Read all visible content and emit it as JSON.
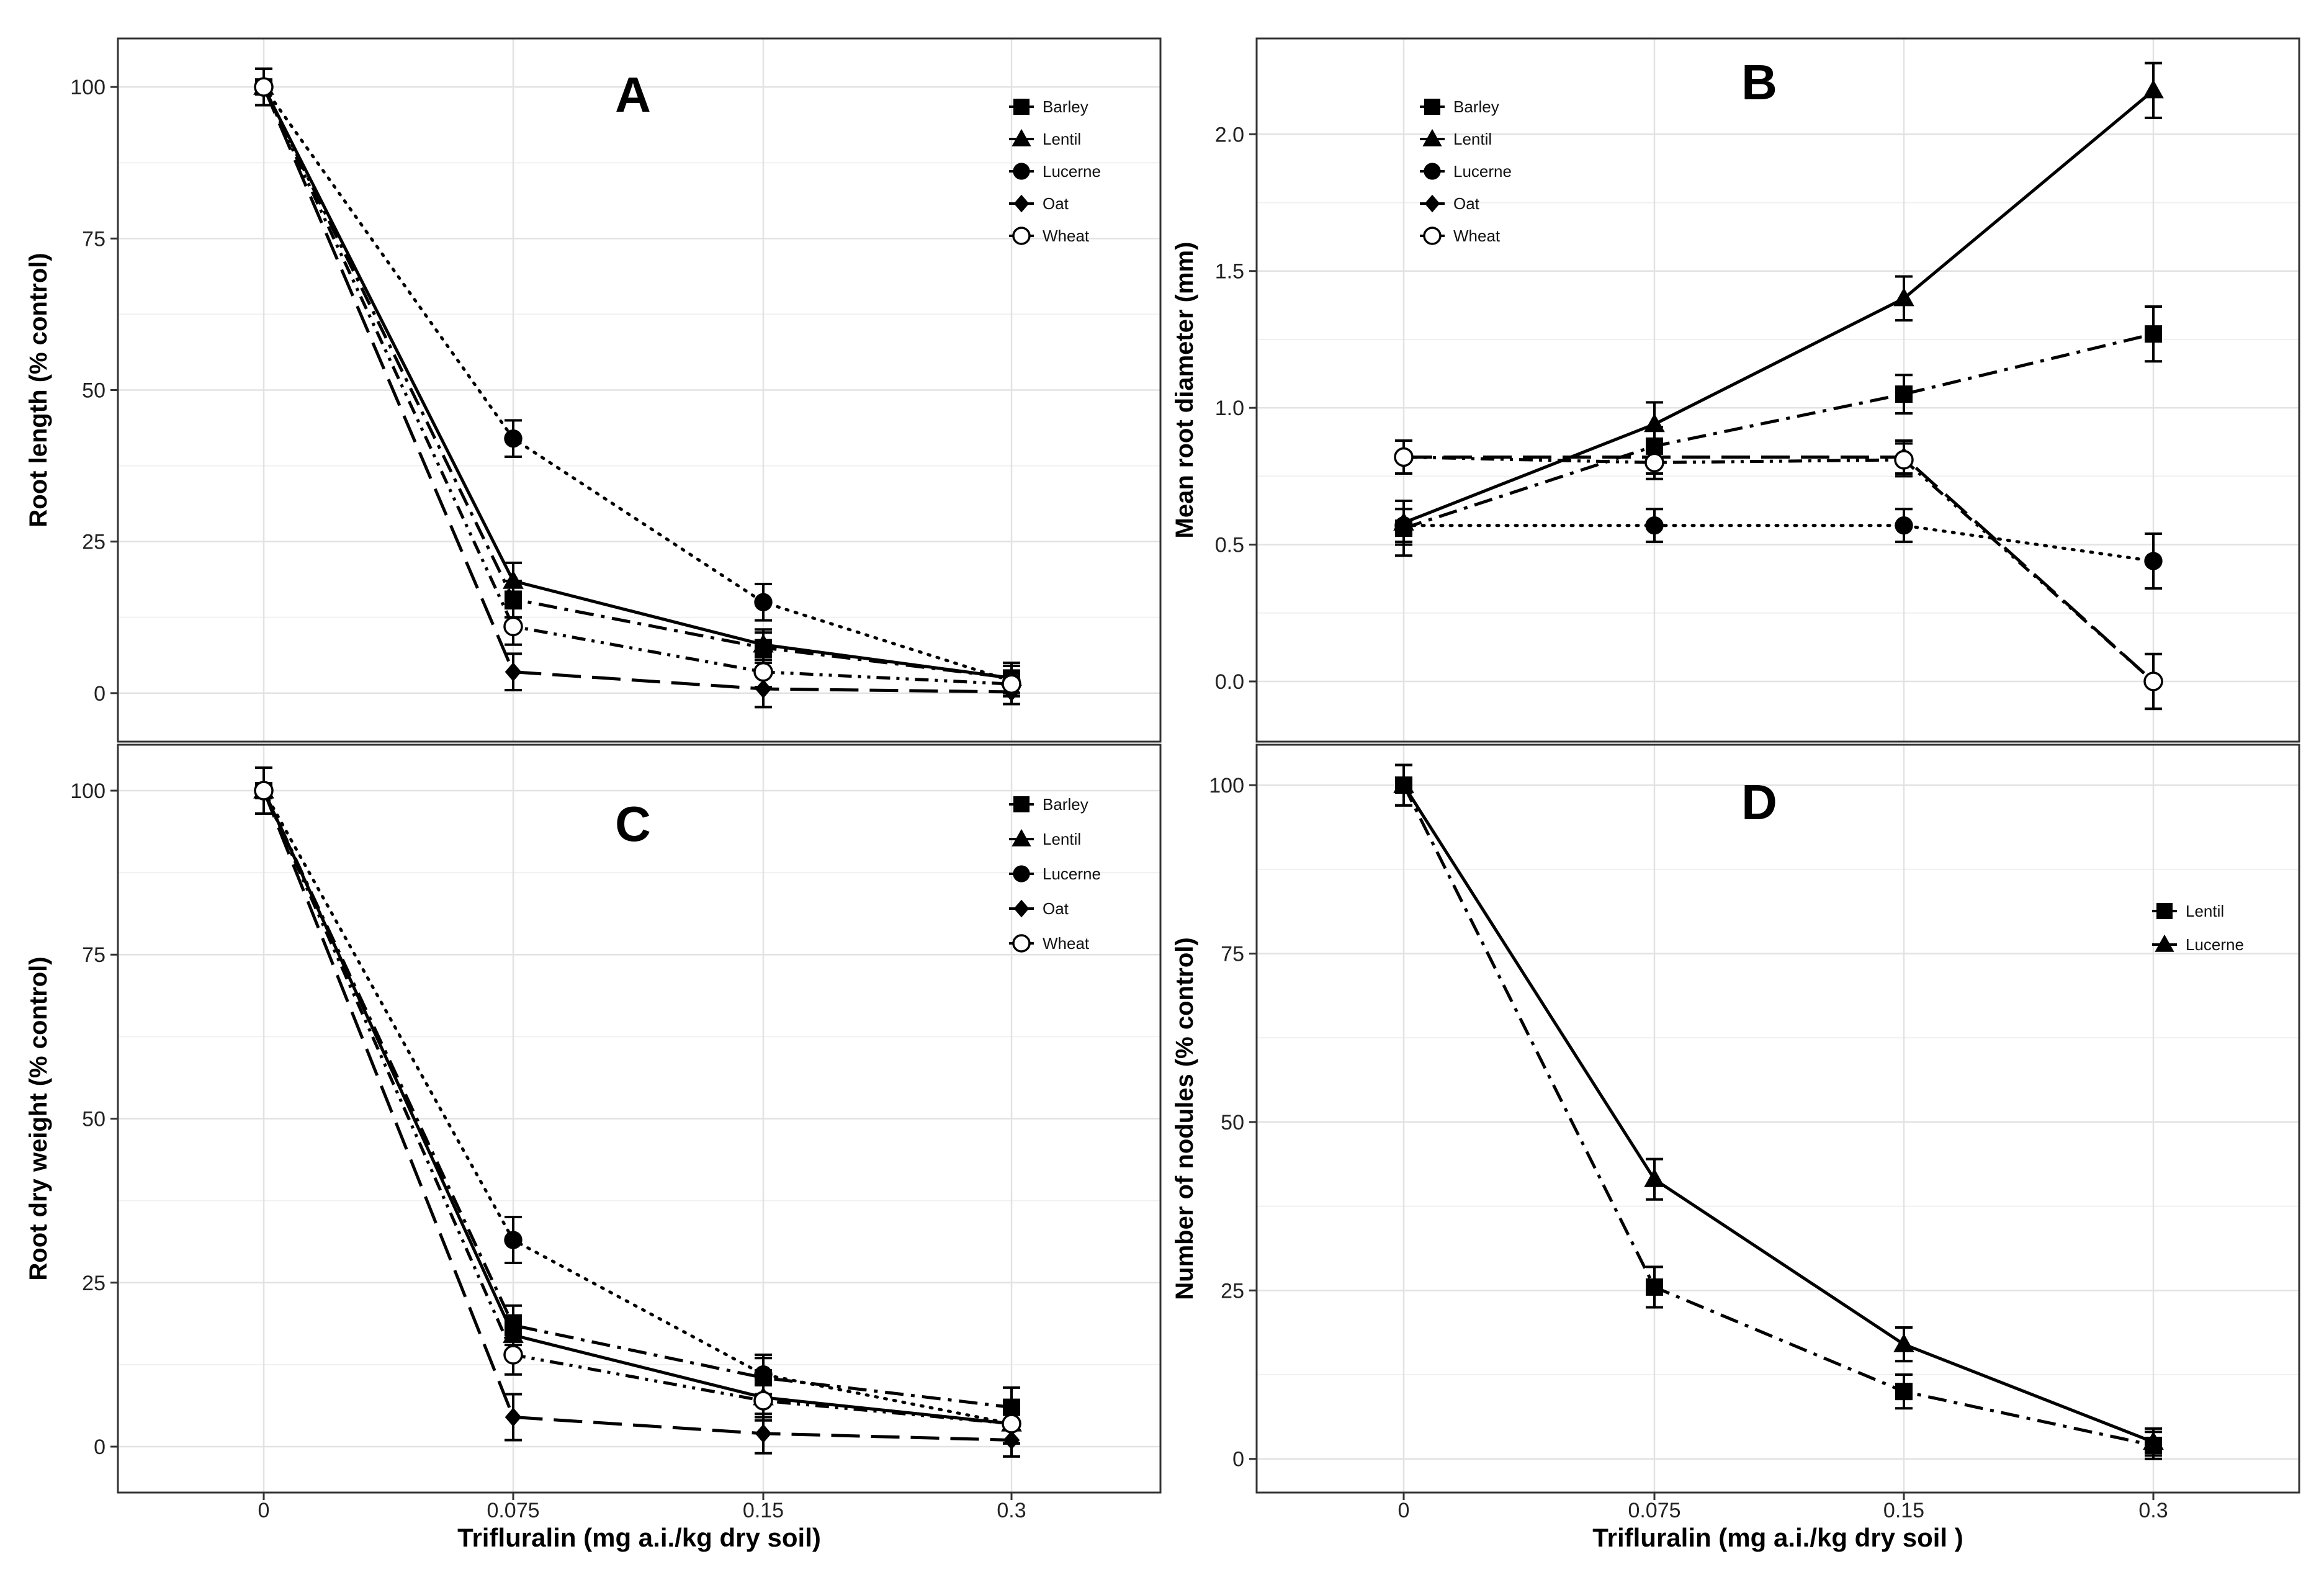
{
  "chart_data": [
    {
      "id": "A",
      "type": "line",
      "panel_label": "A",
      "title": "",
      "xlabel": "",
      "ylabel": "Root length (% control)",
      "categories": [
        "0",
        "0.075",
        "0.15",
        "0.3"
      ],
      "ylim": [
        -8,
        108
      ],
      "yticks": [
        0,
        25,
        50,
        75,
        100
      ],
      "grid": true,
      "legend_position": "top-right",
      "series": [
        {
          "name": "Barley",
          "values": [
            100,
            15.5,
            7.5,
            2.5
          ],
          "errors": [
            3,
            3,
            2.5,
            2.5
          ],
          "marker": "square",
          "dash": "dashdot"
        },
        {
          "name": "Lentil",
          "values": [
            100,
            18.5,
            8,
            2.5
          ],
          "errors": [
            3,
            3,
            2.5,
            2.5
          ],
          "marker": "triangle",
          "dash": "solid"
        },
        {
          "name": "Lucerne",
          "values": [
            100,
            42,
            15,
            2
          ],
          "errors": [
            3,
            3,
            3,
            2.5
          ],
          "marker": "circle",
          "dash": "dotted"
        },
        {
          "name": "Oat",
          "values": [
            100,
            3.5,
            0.7,
            0.2
          ],
          "errors": [
            3,
            3,
            3,
            2
          ],
          "marker": "diamond",
          "dash": "longdash"
        },
        {
          "name": "Wheat",
          "values": [
            100,
            11,
            3.5,
            1.5
          ],
          "errors": [
            3,
            3,
            2.5,
            2
          ],
          "marker": "open-circle",
          "dash": "dashdotdot"
        }
      ]
    },
    {
      "id": "B",
      "type": "line",
      "panel_label": "B",
      "title": "",
      "xlabel": "",
      "ylabel": "Mean root diameter (mm)",
      "categories": [
        "0",
        "0.075",
        "0.15",
        "0.3"
      ],
      "ylim": [
        -0.22,
        2.35
      ],
      "yticks": [
        0.0,
        0.5,
        1.0,
        1.5,
        2.0
      ],
      "ytick_labels": [
        "0.0",
        "0.5",
        "1.0",
        "1.5",
        "2.0"
      ],
      "grid": true,
      "legend_position": "top-left",
      "series": [
        {
          "name": "Barley",
          "values": [
            0.56,
            0.86,
            1.05,
            1.27
          ],
          "errors": [
            0.1,
            0.07,
            0.07,
            0.1
          ],
          "marker": "square",
          "dash": "dashdot"
        },
        {
          "name": "Lentil",
          "values": [
            0.58,
            0.94,
            1.4,
            2.16
          ],
          "errors": [
            0.08,
            0.08,
            0.08,
            0.1
          ],
          "marker": "triangle",
          "dash": "solid"
        },
        {
          "name": "Lucerne",
          "values": [
            0.57,
            0.57,
            0.57,
            0.44
          ],
          "errors": [
            0.06,
            0.06,
            0.06,
            0.1
          ],
          "marker": "circle",
          "dash": "dotted"
        },
        {
          "name": "Oat",
          "values": [
            0.82,
            0.82,
            0.82,
            0.0
          ],
          "errors": [
            0.06,
            0.06,
            0.06,
            0.1
          ],
          "marker": "diamond",
          "dash": "longdash"
        },
        {
          "name": "Wheat",
          "values": [
            0.82,
            0.8,
            0.81,
            0.0
          ],
          "errors": [
            0.06,
            0.06,
            0.06,
            0.1
          ],
          "marker": "open-circle",
          "dash": "dashdotdot"
        }
      ]
    },
    {
      "id": "C",
      "type": "line",
      "panel_label": "C",
      "title": "",
      "xlabel": "Trifluralin (mg a.i./kg dry soil)",
      "ylabel": "Root dry weight (% control)",
      "categories": [
        "0",
        "0.075",
        "0.15",
        "0.3"
      ],
      "ylim": [
        -7,
        107
      ],
      "yticks": [
        0,
        25,
        50,
        75,
        100
      ],
      "grid": true,
      "legend_position": "top-right",
      "series": [
        {
          "name": "Barley",
          "values": [
            100,
            18.5,
            10.5,
            6
          ],
          "errors": [
            3.5,
            3,
            3,
            3
          ],
          "marker": "square",
          "dash": "dashdot"
        },
        {
          "name": "Lentil",
          "values": [
            100,
            17,
            7.5,
            3.5
          ],
          "errors": [
            3.5,
            3,
            3,
            3
          ],
          "marker": "triangle",
          "dash": "solid"
        },
        {
          "name": "Lucerne",
          "values": [
            100,
            31.5,
            11,
            3.5
          ],
          "errors": [
            3.5,
            3.5,
            3,
            3
          ],
          "marker": "circle",
          "dash": "dotted"
        },
        {
          "name": "Oat",
          "values": [
            100,
            4.5,
            2,
            1
          ],
          "errors": [
            3.5,
            3.5,
            3,
            2.5
          ],
          "marker": "diamond",
          "dash": "longdash"
        },
        {
          "name": "Wheat",
          "values": [
            100,
            14,
            7,
            3.5
          ],
          "errors": [
            3.5,
            3,
            3,
            3
          ],
          "marker": "open-circle",
          "dash": "dashdotdot"
        }
      ]
    },
    {
      "id": "D",
      "type": "line",
      "panel_label": "D",
      "title": "",
      "xlabel": "Trifluralin (mg a.i./kg dry soil )",
      "ylabel": "Number of nodules (% control)",
      "categories": [
        "0",
        "0.075",
        "0.15",
        "0.3"
      ],
      "ylim": [
        -5,
        106
      ],
      "yticks": [
        0,
        25,
        50,
        75,
        100
      ],
      "grid": true,
      "legend_position": "right",
      "series": [
        {
          "name": "Lentil",
          "values": [
            100,
            25.5,
            10,
            2
          ],
          "errors": [
            3,
            3,
            2.5,
            2
          ],
          "marker": "square",
          "dash": "dashdot"
        },
        {
          "name": "Lucerne",
          "values": [
            100,
            41.5,
            17,
            2.5
          ],
          "errors": [
            3,
            3,
            2.5,
            2
          ],
          "marker": "triangle",
          "dash": "solid"
        }
      ]
    }
  ]
}
